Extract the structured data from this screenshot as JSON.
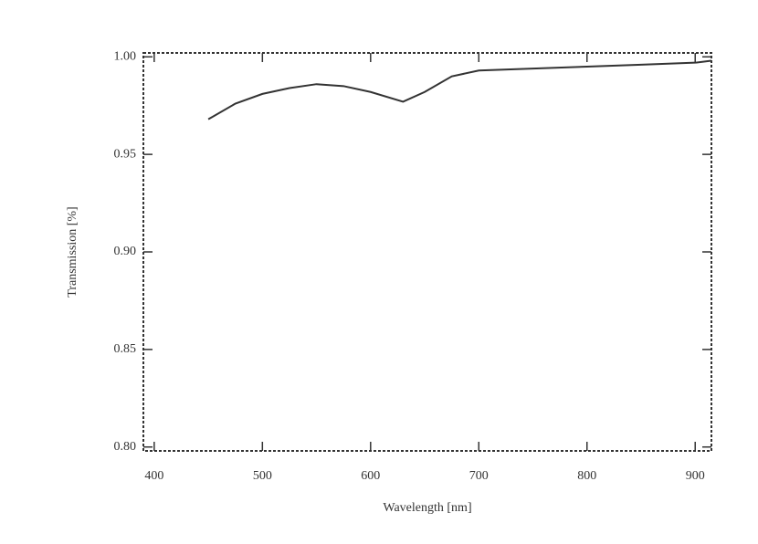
{
  "chart_data": {
    "type": "line",
    "x_label": "Wavelength [nm]",
    "y_label": "Transmission [%]",
    "x": [
      450,
      475,
      500,
      525,
      550,
      575,
      600,
      630,
      650,
      675,
      700,
      750,
      800,
      850,
      900,
      915
    ],
    "series": [
      {
        "color": "#333333",
        "values": [
          0.968,
          0.976,
          0.981,
          0.984,
          0.986,
          0.985,
          0.982,
          0.977,
          0.982,
          0.99,
          0.993,
          0.994,
          0.995,
          0.996,
          0.997,
          0.998
        ]
      }
    ],
    "xlim": [
      390,
      915
    ],
    "xticks": [
      400,
      500,
      600,
      700,
      800,
      900
    ],
    "ylim": [
      0.798,
      1.002
    ],
    "yticks": [
      {
        "value": 0.8,
        "label": "0.80"
      },
      0.85,
      {
        "value": 0.9,
        "label": "0.90"
      },
      0.95,
      {
        "value": 1.0,
        "label": "1.00"
      }
    ]
  }
}
